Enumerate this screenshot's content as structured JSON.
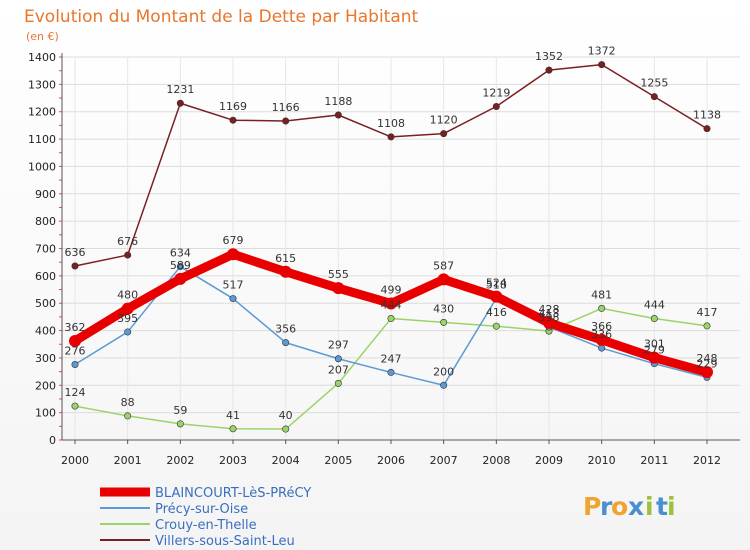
{
  "header": {
    "title": "Evolution du Montant de la Dette par Habitant",
    "subtitle": "(en €)"
  },
  "logo": {
    "letters": [
      "P",
      "r",
      "o",
      "x",
      "i",
      "t",
      "i"
    ],
    "colors": [
      "#f0a330",
      "#4a8fd0",
      "#f0a330",
      "#4a8fd0",
      "#9bc23a",
      "#4a8fd0",
      "#9bc23a"
    ]
  },
  "chart_data": {
    "type": "line",
    "title": "Evolution du Montant de la Dette par Habitant",
    "subtitle": "(en €)",
    "xlabel": "",
    "ylabel": "",
    "categories": [
      "2000",
      "2001",
      "2002",
      "2003",
      "2004",
      "2005",
      "2006",
      "2007",
      "2008",
      "2009",
      "2010",
      "2011",
      "2012"
    ],
    "ylim": [
      0,
      1400
    ],
    "yticks": [
      0,
      100,
      200,
      300,
      400,
      500,
      600,
      700,
      800,
      900,
      1000,
      1100,
      1200,
      1300,
      1400
    ],
    "grid": true,
    "legend_position": "bottom-left",
    "series": [
      {
        "name": "Villers-sous-Saint-Leu",
        "color": "#7b1f22",
        "values": [
          636,
          676,
          1231,
          1169,
          1166,
          1188,
          1108,
          1120,
          1219,
          1352,
          1372,
          1255,
          1138
        ]
      },
      {
        "name": "Crouy-en-Thelle",
        "color": "#9bd36a",
        "values": [
          124,
          88,
          59,
          41,
          40,
          207,
          444,
          430,
          416,
          398,
          481,
          444,
          417
        ]
      },
      {
        "name": "Précy-sur-Oise",
        "color": "#5b9ad5",
        "values": [
          276,
          395,
          634,
          517,
          356,
          297,
          247,
          200,
          518,
          413,
          336,
          279,
          229
        ]
      },
      {
        "name": "BLAINCOURT-LèS-PRéCY",
        "color": "#e80000",
        "values": [
          362,
          480,
          589,
          679,
          615,
          555,
          499,
          587,
          524,
          428,
          366,
          301,
          248
        ]
      }
    ]
  }
}
